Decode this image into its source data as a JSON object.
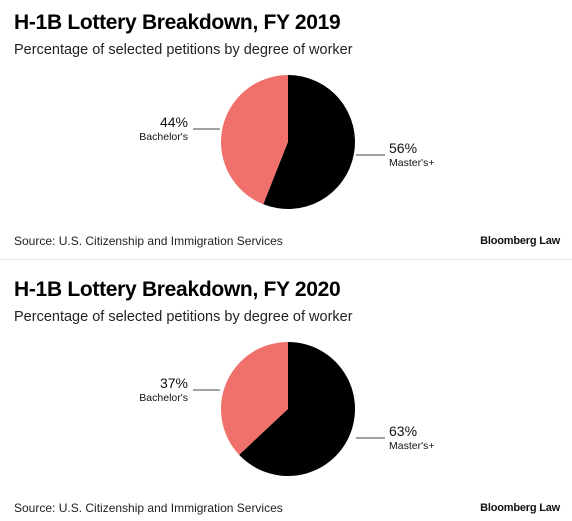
{
  "colors": {
    "bachelors": "#f0716b",
    "masters": "#000000",
    "leader": "#444444"
  },
  "chart_data": [
    {
      "type": "pie",
      "title": "H-1B Lottery Breakdown, FY 2019",
      "subtitle": "Percentage of selected petitions by degree of worker",
      "slices": [
        {
          "name": "Bachelor's",
          "value": 44,
          "label": "44%"
        },
        {
          "name": "Master's+",
          "value": 56,
          "label": "56%"
        }
      ],
      "source": "Source: U.S. Citizenship and Immigration Services",
      "brand": "Bloomberg Law"
    },
    {
      "type": "pie",
      "title": "H-1B Lottery Breakdown, FY 2020",
      "subtitle": "Percentage of selected petitions by degree of worker",
      "slices": [
        {
          "name": "Bachelor's",
          "value": 37,
          "label": "37%"
        },
        {
          "name": "Master's+",
          "value": 63,
          "label": "63%"
        }
      ],
      "source": "Source: U.S. Citizenship and Immigration Services",
      "brand": "Bloomberg Law"
    }
  ]
}
